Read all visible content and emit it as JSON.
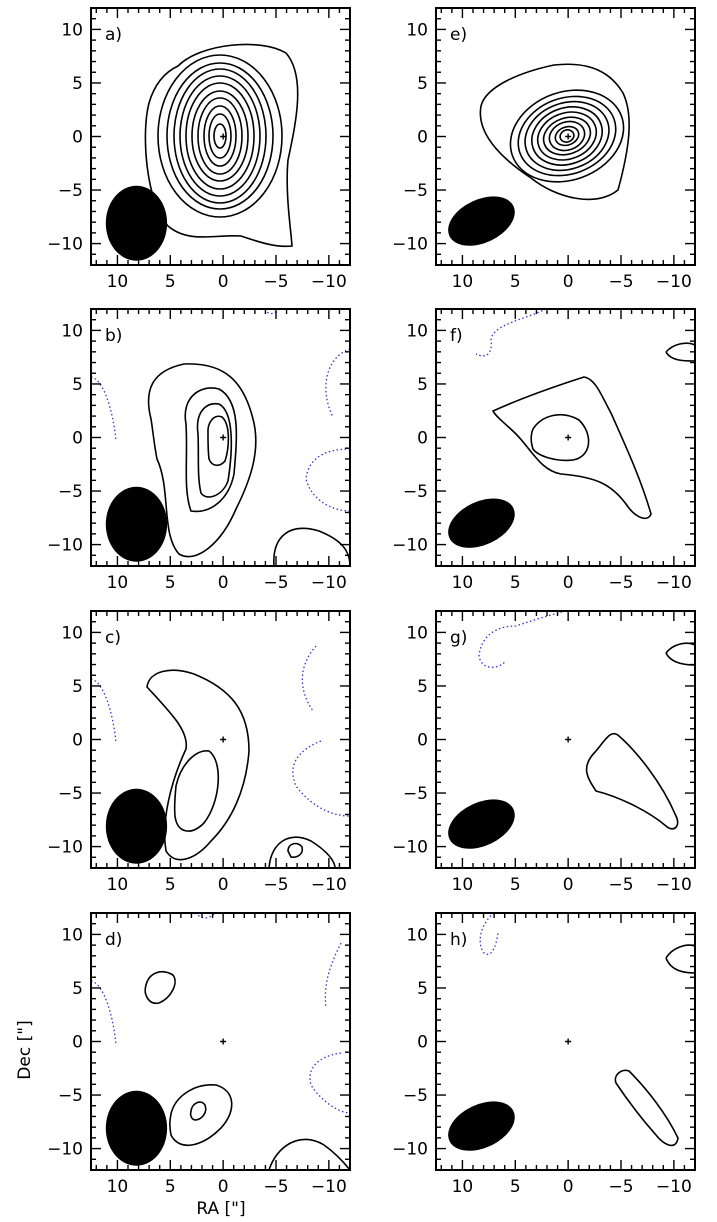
{
  "figure": {
    "x_axis_title": "RA [\"]",
    "y_axis_title": "Dec [\"]",
    "x_tick_labels": [
      "10",
      "5",
      "0",
      "−5",
      "−10"
    ],
    "y_tick_labels": [
      "10",
      "5",
      "0",
      "−5",
      "−10"
    ],
    "x_ticks": [
      10,
      5,
      0,
      -5,
      -10
    ],
    "y_ticks": [
      10,
      5,
      0,
      -5,
      -10
    ],
    "xlim": [
      12.5,
      -12
    ],
    "ylim": [
      -12,
      12
    ],
    "positive_contour_color": "#000000",
    "negative_contour_color": "#3333cc",
    "beam_color": "#000000"
  },
  "panels": [
    {
      "id": "a",
      "label": "a)",
      "column": 0,
      "row": 0,
      "beam": {
        "ra": 8.2,
        "dec": -8.1,
        "major": 7.0,
        "minor": 5.8,
        "pa_deg": 0
      }
    },
    {
      "id": "b",
      "label": "b)",
      "column": 0,
      "row": 1,
      "beam": {
        "ra": 8.2,
        "dec": -8.1,
        "major": 7.0,
        "minor": 5.8,
        "pa_deg": 0
      }
    },
    {
      "id": "c",
      "label": "c)",
      "column": 0,
      "row": 2,
      "beam": {
        "ra": 8.2,
        "dec": -8.1,
        "major": 7.0,
        "minor": 5.8,
        "pa_deg": 0
      }
    },
    {
      "id": "d",
      "label": "d)",
      "column": 0,
      "row": 3,
      "beam": {
        "ra": 8.2,
        "dec": -8.1,
        "major": 7.0,
        "minor": 5.8,
        "pa_deg": 0
      }
    },
    {
      "id": "e",
      "label": "e)",
      "column": 1,
      "row": 0,
      "beam": {
        "ra": 8.2,
        "dec": -7.9,
        "major": 6.6,
        "minor": 4.1,
        "pa_deg": 65
      }
    },
    {
      "id": "f",
      "label": "f)",
      "column": 1,
      "row": 1,
      "beam": {
        "ra": 8.2,
        "dec": -8.0,
        "major": 6.6,
        "minor": 4.1,
        "pa_deg": 65
      }
    },
    {
      "id": "g",
      "label": "g)",
      "column": 1,
      "row": 2,
      "beam": {
        "ra": 8.2,
        "dec": -7.9,
        "major": 6.6,
        "minor": 4.1,
        "pa_deg": 65
      }
    },
    {
      "id": "h",
      "label": "h)",
      "column": 1,
      "row": 3,
      "beam": {
        "ra": 8.2,
        "dec": -7.9,
        "major": 6.6,
        "minor": 4.1,
        "pa_deg": 65
      }
    }
  ]
}
